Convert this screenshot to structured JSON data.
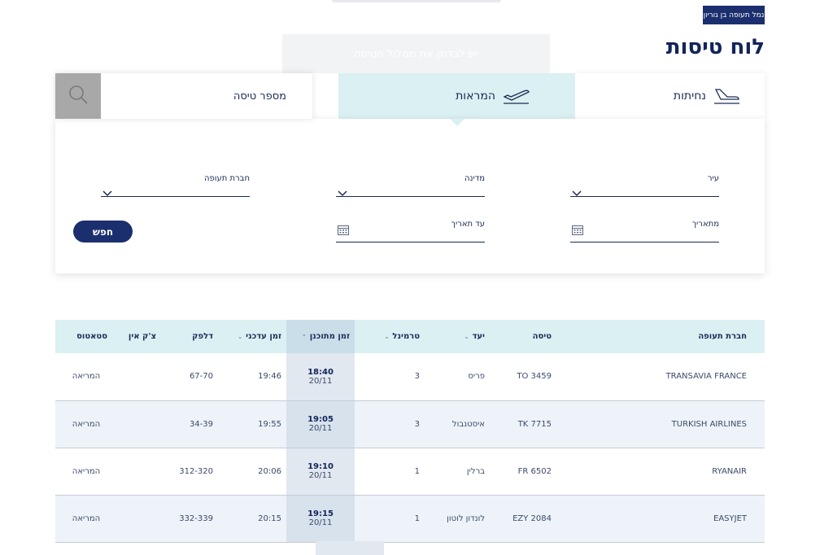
{
  "header": {
    "airport_badge": "נמל תעופה בן גוריון",
    "page_title": "לוח טיסות",
    "banner_text": "יש לבדוק את מסלול הטיסה"
  },
  "tabs": [
    {
      "label": "נחיתות",
      "icon": "plane-landing-icon"
    },
    {
      "label": "המראות",
      "icon": "plane-takeoff-icon"
    }
  ],
  "search": {
    "placeholder": "מספר טיסה",
    "icon": "search-icon"
  },
  "filters": {
    "city": "עיר",
    "country": "מדינה",
    "airline": "חברת תעופה",
    "from_date": "מתאריך",
    "to_date": "עד תאריך",
    "search_button": "חפש"
  },
  "table": {
    "headers": {
      "airline": "חברת תעופה",
      "flight": "טיסה",
      "destination": "יעד",
      "terminal": "טרמינל",
      "scheduled": "זמן מתוכנן",
      "updated": "זמן עדכני",
      "gate": "דלפק",
      "checkin": "צ'ק אין",
      "status": "סטאטוס"
    },
    "rows": [
      {
        "airline": "TRANSAVIA FRANCE",
        "flight": "TO 3459",
        "destination": "פריס",
        "terminal": "3",
        "sched_time": "18:40",
        "sched_date": "20/11",
        "updated": "19:46",
        "gate": "67-70",
        "checkin": "",
        "status": "המריאה"
      },
      {
        "airline": "TURKISH AIRLINES",
        "flight": "TK 7715",
        "destination": "איסטנבול",
        "terminal": "3",
        "sched_time": "19:05",
        "sched_date": "20/11",
        "updated": "19:55",
        "gate": "34-39",
        "checkin": "",
        "status": "המריאה"
      },
      {
        "airline": "RYANAIR",
        "flight": "FR 6502",
        "destination": "ברלין",
        "terminal": "1",
        "sched_time": "19:10",
        "sched_date": "20/11",
        "updated": "20:06",
        "gate": "312-320",
        "checkin": "",
        "status": "המריאה"
      },
      {
        "airline": "EASYJET",
        "flight": "EZY 2084",
        "destination": "לונדון לוטון",
        "terminal": "1",
        "sched_time": "19:15",
        "sched_date": "20/11",
        "updated": "20:15",
        "gate": "332-339",
        "checkin": "",
        "status": "המריאה"
      }
    ]
  },
  "colors": {
    "navy": "#1b2f6e",
    "teal_tab": "#daf0f2",
    "grey_search": "#a8a8a8"
  }
}
